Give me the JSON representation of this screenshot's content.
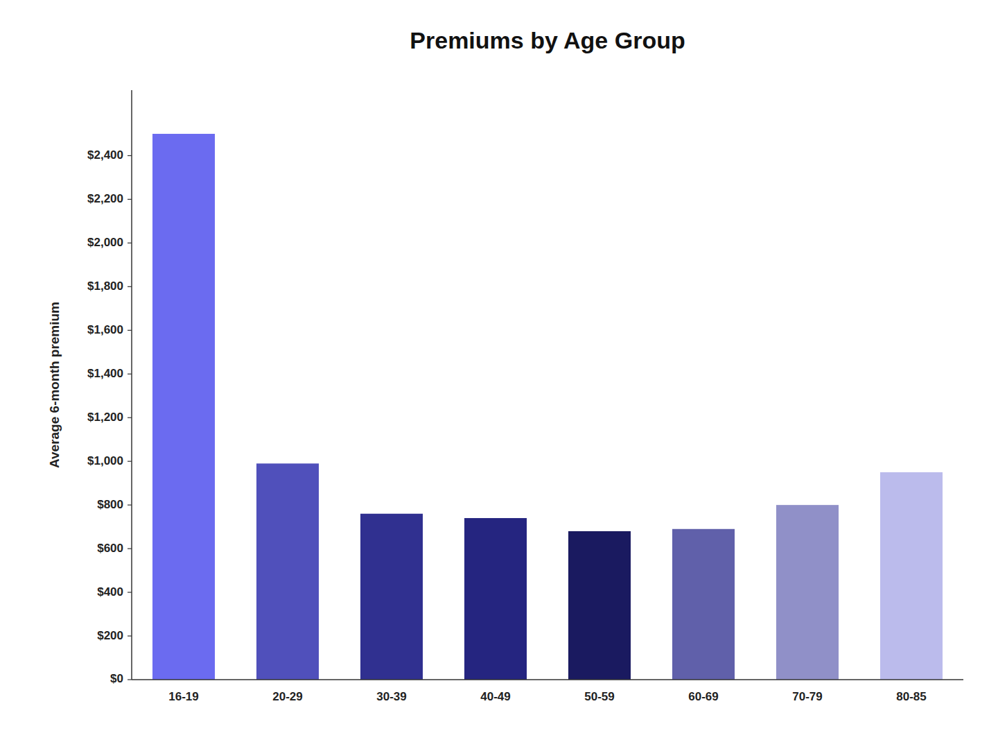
{
  "chart_data": {
    "type": "bar",
    "title": "Premiums by Age Group",
    "categories": [
      "16-19",
      "20-29",
      "30-39",
      "40-49",
      "50-59",
      "60-69",
      "70-79",
      "80-85"
    ],
    "values": [
      2500,
      990,
      760,
      740,
      680,
      690,
      800,
      950
    ],
    "colors": [
      "#6B6BF0",
      "#5050BB",
      "#303090",
      "#252580",
      "#1A1A60",
      "#6060AA",
      "#9090C8",
      "#BBBBEC"
    ],
    "ylabel": "Average 6-month premium",
    "ylim": [
      0,
      2700
    ],
    "yticks": [
      {
        "value": 0,
        "label": "$0"
      },
      {
        "value": 200,
        "label": "$200"
      },
      {
        "value": 400,
        "label": "$400"
      },
      {
        "value": 600,
        "label": "$600"
      },
      {
        "value": 800,
        "label": "$800"
      },
      {
        "value": 1000,
        "label": "$1,000"
      },
      {
        "value": 1200,
        "label": "$1,200"
      },
      {
        "value": 1400,
        "label": "$1,400"
      },
      {
        "value": 1600,
        "label": "$1,600"
      },
      {
        "value": 1800,
        "label": "$1,800"
      },
      {
        "value": 2000,
        "label": "$2,000"
      },
      {
        "value": 2200,
        "label": "$2,200"
      },
      {
        "value": 2400,
        "label": "$2,400"
      }
    ],
    "grid": false
  }
}
